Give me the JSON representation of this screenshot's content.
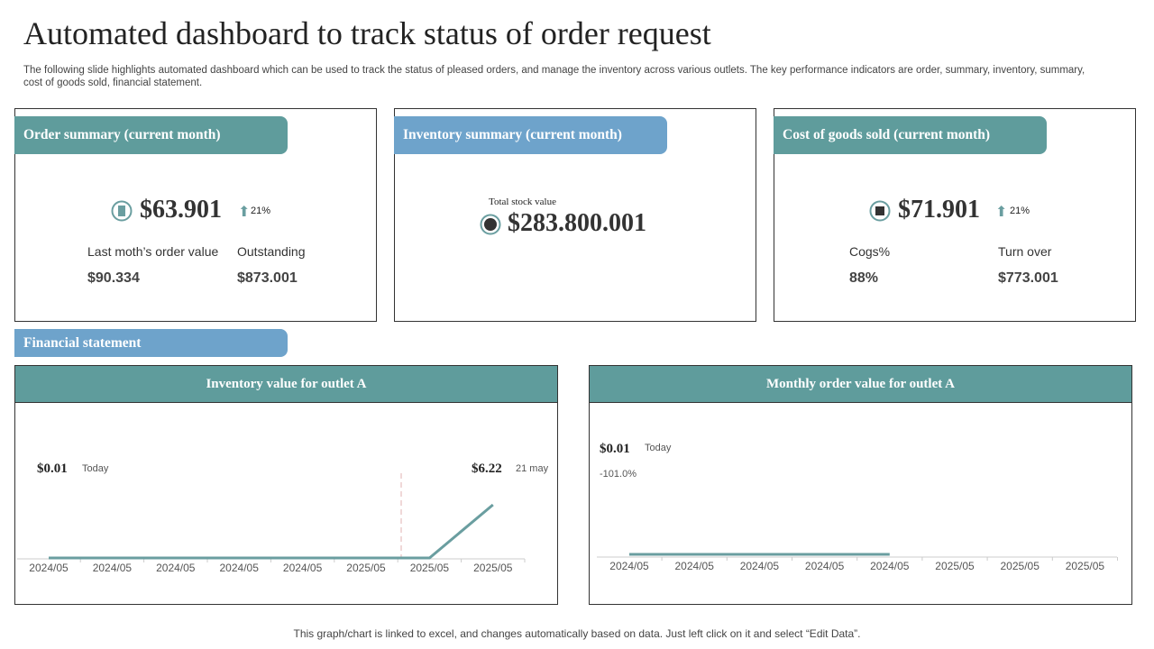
{
  "header": {
    "title": "Automated dashboard to track status of order request",
    "subtitle": "The following slide highlights automated dashboard which can be used to track the status of pleased orders, and manage the inventory across various outlets. The key performance indicators are order, summary, inventory, summary, cost of goods sold, financial statement."
  },
  "cards": [
    {
      "heading": "Order summary (current month)",
      "value": "$63.901",
      "change": "21%",
      "stats": [
        {
          "label": "Last moth’s order value",
          "value": "$90.334"
        },
        {
          "label": "Outstanding",
          "value": "$873.001"
        }
      ]
    },
    {
      "heading": "Inventory summary (current month)",
      "caption": "Total stock value",
      "value": "$283.800.001"
    },
    {
      "heading": "Cost of goods sold (current month)",
      "value": "$71.901",
      "change": "21%",
      "stats": [
        {
          "label": "Cogs%",
          "value": "88%"
        },
        {
          "label": "Turn over",
          "value": "$773.001"
        }
      ]
    }
  ],
  "section_label": "Financial statement",
  "chart_data": [
    {
      "type": "line",
      "title": "Inventory value for outlet A",
      "color": "#6a9ea0",
      "categories": [
        "2024/05",
        "2024/05",
        "2024/05",
        "2024/05",
        "2024/05",
        "2025/05",
        "2025/05",
        "2025/05"
      ],
      "values": [
        0,
        0,
        0,
        0,
        0,
        0,
        0,
        6.22
      ],
      "annotations": [
        {
          "text": "$0.01",
          "note": "Today"
        },
        {
          "text": "$6.22",
          "note": "21 may"
        }
      ]
    },
    {
      "type": "line",
      "title": "Monthly order value for outlet A",
      "color": "#6a9ea0",
      "categories": [
        "2024/05",
        "2024/05",
        "2024/05",
        "2024/05",
        "2024/05",
        "2025/05",
        "2025/05",
        "2025/05"
      ],
      "values": [
        0,
        0,
        0,
        0,
        0,
        null,
        null,
        null
      ],
      "annotations": [
        {
          "text": "$0.01",
          "note": "Today",
          "change": "-101.0%"
        }
      ]
    }
  ],
  "footer": "This graph/chart is linked to excel, and changes automatically based on data. Just left click on it and select “Edit Data”."
}
